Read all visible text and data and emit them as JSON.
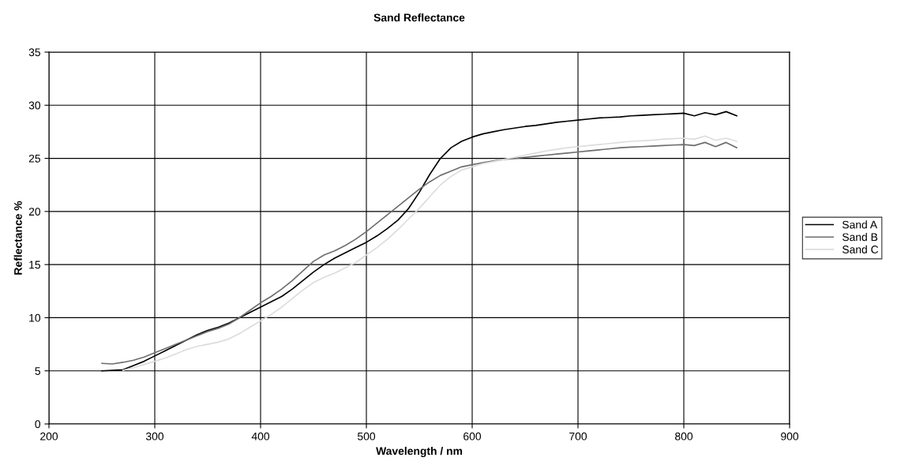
{
  "chart_data": {
    "type": "line",
    "title": "Sand Reflectance",
    "xlabel": "Wavelength / nm",
    "ylabel": "Reflectance %",
    "x": [
      250,
      260,
      270,
      280,
      290,
      300,
      310,
      320,
      330,
      340,
      350,
      360,
      370,
      380,
      390,
      400,
      410,
      420,
      430,
      440,
      450,
      460,
      470,
      480,
      490,
      500,
      510,
      520,
      530,
      540,
      550,
      560,
      570,
      580,
      590,
      600,
      610,
      620,
      630,
      640,
      650,
      660,
      670,
      680,
      690,
      700,
      710,
      720,
      730,
      740,
      750,
      760,
      770,
      780,
      790,
      800,
      810,
      820,
      830,
      840,
      850
    ],
    "series": [
      {
        "name": "Sand A",
        "color": "#000000",
        "values": [
          5.0,
          5.05,
          5.1,
          5.5,
          5.9,
          6.4,
          6.9,
          7.4,
          7.9,
          8.4,
          8.8,
          9.1,
          9.5,
          10.0,
          10.5,
          11.0,
          11.5,
          12.0,
          12.7,
          13.5,
          14.3,
          15.0,
          15.6,
          16.1,
          16.6,
          17.1,
          17.7,
          18.4,
          19.2,
          20.3,
          21.8,
          23.5,
          25.0,
          26.0,
          26.6,
          27.0,
          27.3,
          27.5,
          27.7,
          27.85,
          28.0,
          28.1,
          28.25,
          28.4,
          28.5,
          28.6,
          28.7,
          28.8,
          28.85,
          28.9,
          29.0,
          29.05,
          29.1,
          29.15,
          29.2,
          29.25,
          29.0,
          29.3,
          29.1,
          29.4,
          29.0
        ]
      },
      {
        "name": "Sand B",
        "color": "#6e6e6e",
        "values": [
          5.7,
          5.65,
          5.8,
          6.0,
          6.3,
          6.7,
          7.1,
          7.5,
          7.9,
          8.3,
          8.7,
          9.0,
          9.4,
          10.0,
          10.7,
          11.4,
          12.0,
          12.7,
          13.5,
          14.4,
          15.3,
          15.9,
          16.3,
          16.8,
          17.4,
          18.1,
          18.9,
          19.7,
          20.5,
          21.3,
          22.1,
          22.8,
          23.4,
          23.8,
          24.2,
          24.4,
          24.6,
          24.75,
          24.9,
          25.0,
          25.1,
          25.2,
          25.3,
          25.4,
          25.5,
          25.6,
          25.7,
          25.8,
          25.9,
          26.0,
          26.05,
          26.1,
          26.15,
          26.2,
          26.25,
          26.3,
          26.2,
          26.5,
          26.1,
          26.5,
          26.0
        ]
      },
      {
        "name": "Sand C",
        "color": "#dcdcdc",
        "values": [
          null,
          null,
          5.05,
          5.3,
          5.6,
          5.9,
          6.2,
          6.6,
          7.0,
          7.3,
          7.5,
          7.7,
          8.0,
          8.5,
          9.1,
          9.7,
          10.3,
          11.0,
          11.8,
          12.6,
          13.3,
          13.8,
          14.2,
          14.7,
          15.2,
          15.9,
          16.6,
          17.4,
          18.3,
          19.3,
          20.3,
          21.4,
          22.5,
          23.3,
          23.9,
          24.2,
          24.5,
          24.7,
          24.9,
          25.1,
          25.3,
          25.5,
          25.7,
          25.85,
          26.0,
          26.1,
          26.2,
          26.3,
          26.4,
          26.5,
          26.6,
          26.65,
          26.7,
          26.8,
          26.85,
          26.9,
          26.8,
          27.1,
          26.7,
          26.9,
          26.6
        ]
      }
    ],
    "xlim": [
      200,
      900
    ],
    "xticks": [
      200,
      300,
      400,
      500,
      600,
      700,
      800,
      900
    ],
    "ylim": [
      0,
      35
    ],
    "yticks": [
      0,
      5,
      10,
      15,
      20,
      25,
      30,
      35
    ],
    "grid": true,
    "legend": "right",
    "marker": "none",
    "line_style": "solid"
  }
}
